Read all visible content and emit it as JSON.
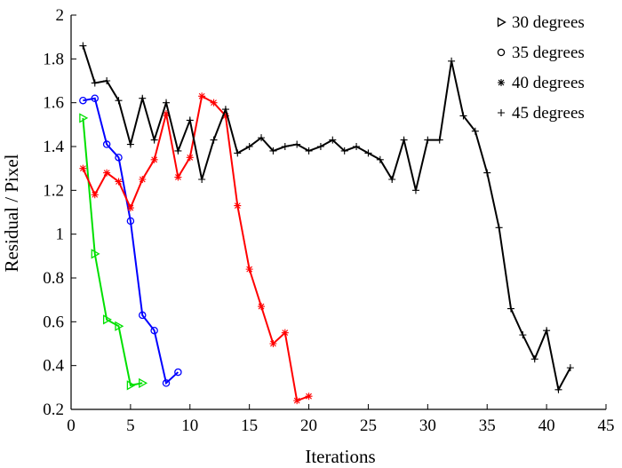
{
  "chart_data": {
    "type": "line",
    "title": "",
    "xlabel": "Iterations",
    "ylabel": "Residual / Pixel",
    "xlim": [
      0,
      45
    ],
    "ylim": [
      0.2,
      2
    ],
    "xticks": [
      0,
      5,
      10,
      15,
      20,
      25,
      30,
      35,
      40,
      45
    ],
    "yticks": [
      0.2,
      0.4,
      0.6,
      0.8,
      1,
      1.2,
      1.4,
      1.6,
      1.8,
      2
    ],
    "xtick_labels": [
      "0",
      "5",
      "10",
      "15",
      "20",
      "25",
      "30",
      "35",
      "40",
      "45"
    ],
    "ytick_labels": [
      "0.2",
      "0.4",
      "0.6",
      "0.8",
      "1",
      "1.2",
      "1.4",
      "1.6",
      "1.8",
      "2"
    ],
    "grid": false,
    "legend_position": "top-right",
    "series": [
      {
        "name": "30 degrees",
        "color": "#00e000",
        "marker": "triangle-right",
        "x": [
          1,
          2,
          3,
          4,
          5,
          6
        ],
        "y": [
          1.53,
          0.91,
          0.61,
          0.58,
          0.31,
          0.32
        ]
      },
      {
        "name": "35 degrees",
        "color": "#0000ff",
        "marker": "circle",
        "x": [
          1,
          2,
          3,
          4,
          5,
          6,
          7,
          8,
          9
        ],
        "y": [
          1.61,
          1.62,
          1.41,
          1.35,
          1.06,
          0.63,
          0.56,
          0.32,
          0.37
        ]
      },
      {
        "name": "40 degrees",
        "color": "#ff0000",
        "marker": "asterisk",
        "x": [
          1,
          2,
          3,
          4,
          5,
          6,
          7,
          8,
          9,
          10,
          11,
          12,
          13,
          14,
          15,
          16,
          17,
          18,
          19,
          20
        ],
        "y": [
          1.3,
          1.18,
          1.28,
          1.24,
          1.12,
          1.25,
          1.34,
          1.55,
          1.26,
          1.35,
          1.63,
          1.6,
          1.54,
          1.13,
          0.84,
          0.67,
          0.5,
          0.55,
          0.24,
          0.26
        ]
      },
      {
        "name": "45 degrees",
        "color": "#000000",
        "marker": "plus",
        "x": [
          1,
          2,
          3,
          4,
          5,
          6,
          7,
          8,
          9,
          10,
          11,
          12,
          13,
          14,
          15,
          16,
          17,
          18,
          19,
          20,
          21,
          22,
          23,
          24,
          25,
          26,
          27,
          28,
          29,
          30,
          31,
          32,
          33,
          34,
          35,
          36,
          37,
          38,
          39,
          40,
          41,
          42
        ],
        "y": [
          1.86,
          1.69,
          1.7,
          1.61,
          1.41,
          1.62,
          1.43,
          1.6,
          1.38,
          1.52,
          1.25,
          1.43,
          1.57,
          1.37,
          1.4,
          1.44,
          1.38,
          1.4,
          1.41,
          1.38,
          1.4,
          1.43,
          1.38,
          1.4,
          1.37,
          1.34,
          1.25,
          1.43,
          1.2,
          1.43,
          1.43,
          1.79,
          1.54,
          1.47,
          1.28,
          1.03,
          0.66,
          0.54,
          0.43,
          0.56,
          0.29,
          0.39
        ]
      }
    ]
  }
}
